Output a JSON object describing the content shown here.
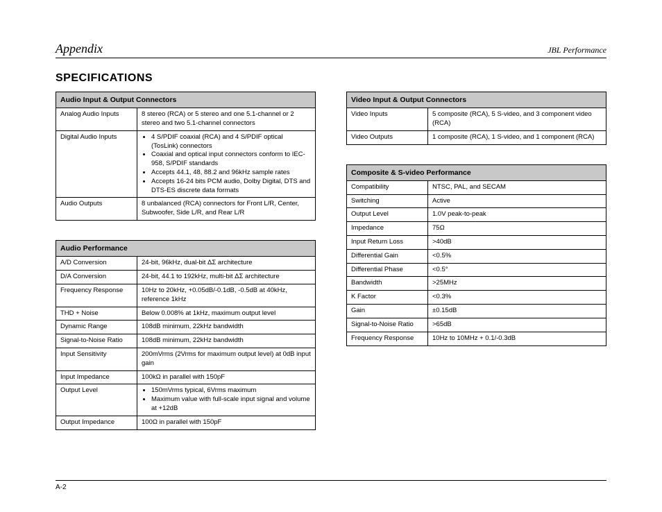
{
  "header": {
    "section": "Appendix",
    "brand": "JBL Performance"
  },
  "title": "Specifications",
  "footer": {
    "page_number": "A-2"
  },
  "tables": {
    "audio_io": {
      "title": "Audio Input & Output Connectors",
      "rows": [
        {
          "label": "Analog Audio Inputs",
          "value": "8 stereo (RCA) or 5 stereo and one 5.1-channel or 2 stereo and two 5.1-channel connectors"
        },
        {
          "label": "Digital Audio Inputs",
          "list": [
            "4 S/PDIF coaxial (RCA) and 4 S/PDIF optical (TosLink) connectors",
            "Coaxial and optical input connectors conform to IEC-958, S/PDIF standards",
            "Accepts 44.1, 48, 88.2 and 96kHz sample rates",
            "Accepts 16-24 bits PCM audio, Dolby Digital, DTS and DTS-ES discrete data formats"
          ]
        },
        {
          "label": "Audio Outputs",
          "value": "8 unbalanced (RCA)  connectors for Front L/R, Center, Subwoofer, Side L/R, and Rear L/R"
        }
      ]
    },
    "audio_perf": {
      "title": "Audio Performance",
      "rows": [
        {
          "label": "A/D Conversion",
          "value": "24-bit, 96kHz, dual-bit ΔΣ architecture"
        },
        {
          "label": "D/A Conversion",
          "value": "24-bit, 44.1 to 192kHz, multi-bit ΔΣ architecture"
        },
        {
          "label": "Frequency Response",
          "value": "10Hz to 20kHz, +0.05dB/-0.1dB, -0.5dB at 40kHz, reference 1kHz"
        },
        {
          "label": "THD + Noise",
          "value": "Below 0.008% at 1kHz, maximum output level"
        },
        {
          "label": "Dynamic Range",
          "value": "108dB minimum, 22kHz bandwidth"
        },
        {
          "label": "Signal-to-Noise Ratio",
          "value": "108dB minimum, 22kHz bandwidth"
        },
        {
          "label": "Input Sensitivity",
          "value": "200mVrms (2Vrms for maximum output level) at 0dB input gain"
        },
        {
          "label": "Input Impedance",
          "value": "100kΩ in parallel with 150pF"
        },
        {
          "label": "Output Level",
          "list": [
            "150mVrms typical, 6Vrms maximum",
            "Maximum value with full-scale input signal and volume at +12dB"
          ]
        },
        {
          "label": "Output Impedance",
          "value": "100Ω in parallel with 150pF"
        }
      ]
    },
    "video_io": {
      "title": "Video Input & Output Connectors",
      "rows": [
        {
          "label": "Video Inputs",
          "value": "5 composite (RCA), 5 S-video, and 3 component video (RCA)"
        },
        {
          "label": "Video Outputs",
          "value": "1 composite (RCA), 1 S-video, and 1 component (RCA)"
        }
      ]
    },
    "video_perf": {
      "title": "Composite & S-video Performance",
      "rows": [
        {
          "label": "Compatibility",
          "value": "NTSC, PAL, and SECAM"
        },
        {
          "label": "Switching",
          "value": "Active"
        },
        {
          "label": "Output Level",
          "value": "1.0V peak-to-peak"
        },
        {
          "label": "Impedance",
          "value": "75Ω"
        },
        {
          "label": "Input Return Loss",
          "value": ">40dB"
        },
        {
          "label": "Differential Gain",
          "value": "<0.5%"
        },
        {
          "label": "Differential Phase",
          "value": "<0.5°"
        },
        {
          "label": "Bandwidth",
          "value": ">25MHz"
        },
        {
          "label": "K Factor",
          "value": "<0.3%"
        },
        {
          "label": "Gain",
          "value": "±0.15dB"
        },
        {
          "label": "Signal-to-Noise Ratio",
          "value": ">65dB"
        },
        {
          "label": "Frequency Response",
          "value": "10Hz to 10MHz + 0.1/-0.3dB"
        }
      ]
    }
  }
}
